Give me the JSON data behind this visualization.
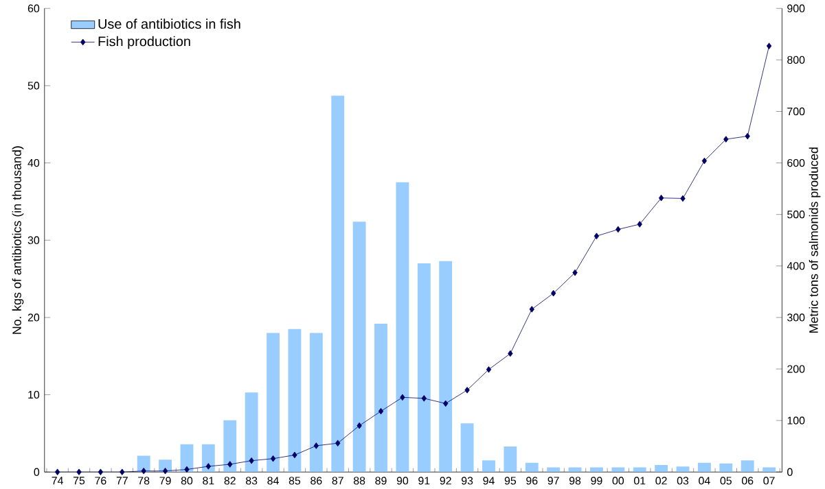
{
  "chart_data": {
    "type": "bar",
    "categories": [
      "74",
      "75",
      "76",
      "77",
      "78",
      "79",
      "80",
      "81",
      "82",
      "83",
      "84",
      "85",
      "86",
      "87",
      "88",
      "89",
      "90",
      "91",
      "92",
      "93",
      "94",
      "95",
      "96",
      "97",
      "98",
      "99",
      "00",
      "01",
      "02",
      "03",
      "04",
      "05",
      "06",
      "07"
    ],
    "series": [
      {
        "name": "Use of antibiotics in fish",
        "color": "#99ccff",
        "values": [
          0,
          0,
          0,
          0,
          2.1,
          1.6,
          3.6,
          3.6,
          6.7,
          10.3,
          18,
          18.5,
          18,
          48.7,
          32.4,
          19.2,
          37.5,
          27,
          27.3,
          6.3,
          1.5,
          3.3,
          1.2,
          0.6,
          0.6,
          0.6,
          0.6,
          0.6,
          0.9,
          0.7,
          1.2,
          1.1,
          1.5,
          0.6
        ]
      },
      {
        "name": "Fish production",
        "type": "line",
        "axis": "y2",
        "color": "#000066",
        "values": [
          0,
          0,
          0,
          0,
          2,
          2,
          5,
          11,
          15,
          22,
          26,
          33,
          51,
          56,
          90,
          118,
          145,
          143,
          133,
          159,
          199,
          230,
          316,
          347,
          387,
          458,
          471,
          481,
          532,
          531,
          604,
          646,
          652,
          827
        ]
      }
    ],
    "ylabel": "No. kgs of antibiotics (in thousand)",
    "y2label": "Metric tons of salmonids produced",
    "ylim": [
      0,
      60
    ],
    "yticks": [
      0,
      10,
      20,
      30,
      40,
      50,
      60
    ],
    "y2lim": [
      0,
      900
    ],
    "y2ticks": [
      0,
      100,
      200,
      300,
      400,
      500,
      600,
      700,
      800,
      900
    ],
    "legend": "top left",
    "marker": "diamond",
    "grid": false
  }
}
